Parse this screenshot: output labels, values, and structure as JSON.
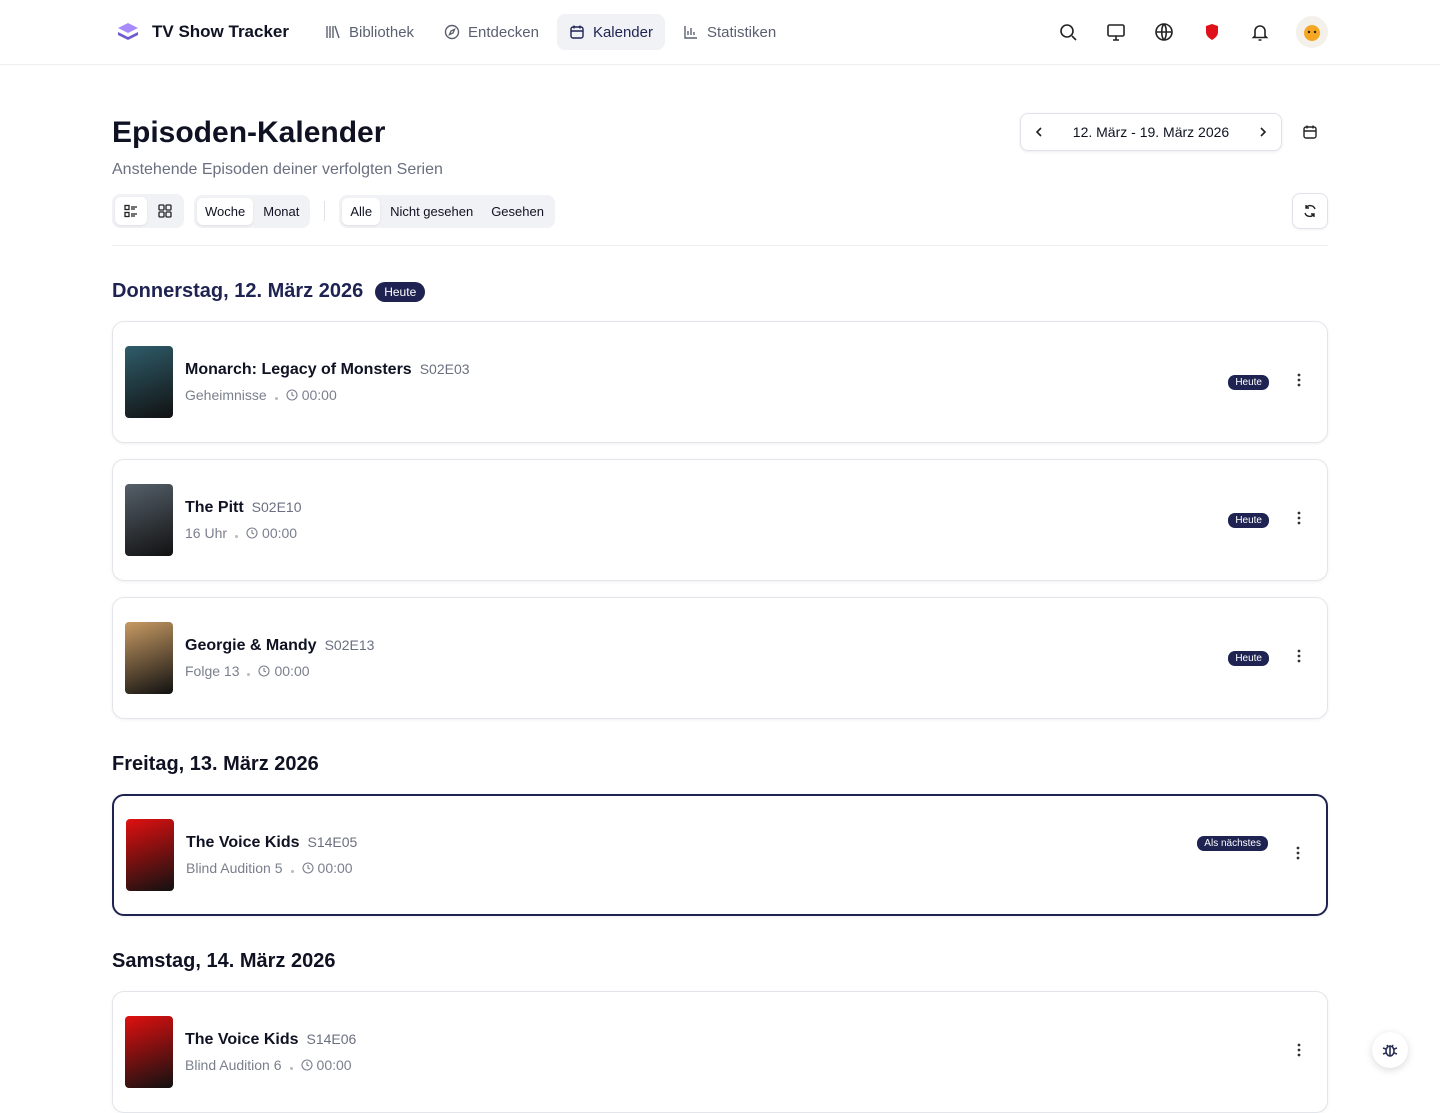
{
  "header": {
    "app_name": "TV Show Tracker",
    "nav": [
      "Bibliothek",
      "Entdecken",
      "Kalender",
      "Statistiken"
    ]
  },
  "page": {
    "title": "Episoden-Kalender",
    "subtitle": "Anstehende Episoden deiner verfolgten Serien",
    "date_range": "12. März - 19. März 2026",
    "view_modes": [
      "Woche",
      "Monat"
    ],
    "filters": [
      "Alle",
      "Nicht gesehen",
      "Gesehen"
    ]
  },
  "days": [
    {
      "date": "Donnerstag, 12. März 2026",
      "badge": "Heute",
      "episodes": [
        {
          "show": "Monarch: Legacy of Monsters",
          "code": "S02E03",
          "title": "Geheimnisse",
          "time": "00:00",
          "badge": "Heute",
          "poster_color": "#2f5d6b"
        },
        {
          "show": "The Pitt",
          "code": "S02E10",
          "title": "16 Uhr",
          "time": "00:00",
          "badge": "Heute",
          "poster_color": "#55606a"
        },
        {
          "show": "Georgie & Mandy",
          "code": "S02E13",
          "title": "Folge 13",
          "time": "00:00",
          "badge": "Heute",
          "poster_color": "#c79a63"
        }
      ]
    },
    {
      "date": "Freitag, 13. März 2026",
      "episodes": [
        {
          "show": "The Voice Kids",
          "code": "S14E05",
          "title": "Blind Audition 5",
          "time": "00:00",
          "badge": "Als nächstes",
          "highlighted": true,
          "poster_color": "#e01010"
        }
      ]
    },
    {
      "date": "Samstag, 14. März 2026",
      "episodes": [
        {
          "show": "The Voice Kids",
          "code": "S14E06",
          "title": "Blind Audition 6",
          "time": "00:00",
          "poster_color": "#e01010"
        }
      ]
    }
  ]
}
